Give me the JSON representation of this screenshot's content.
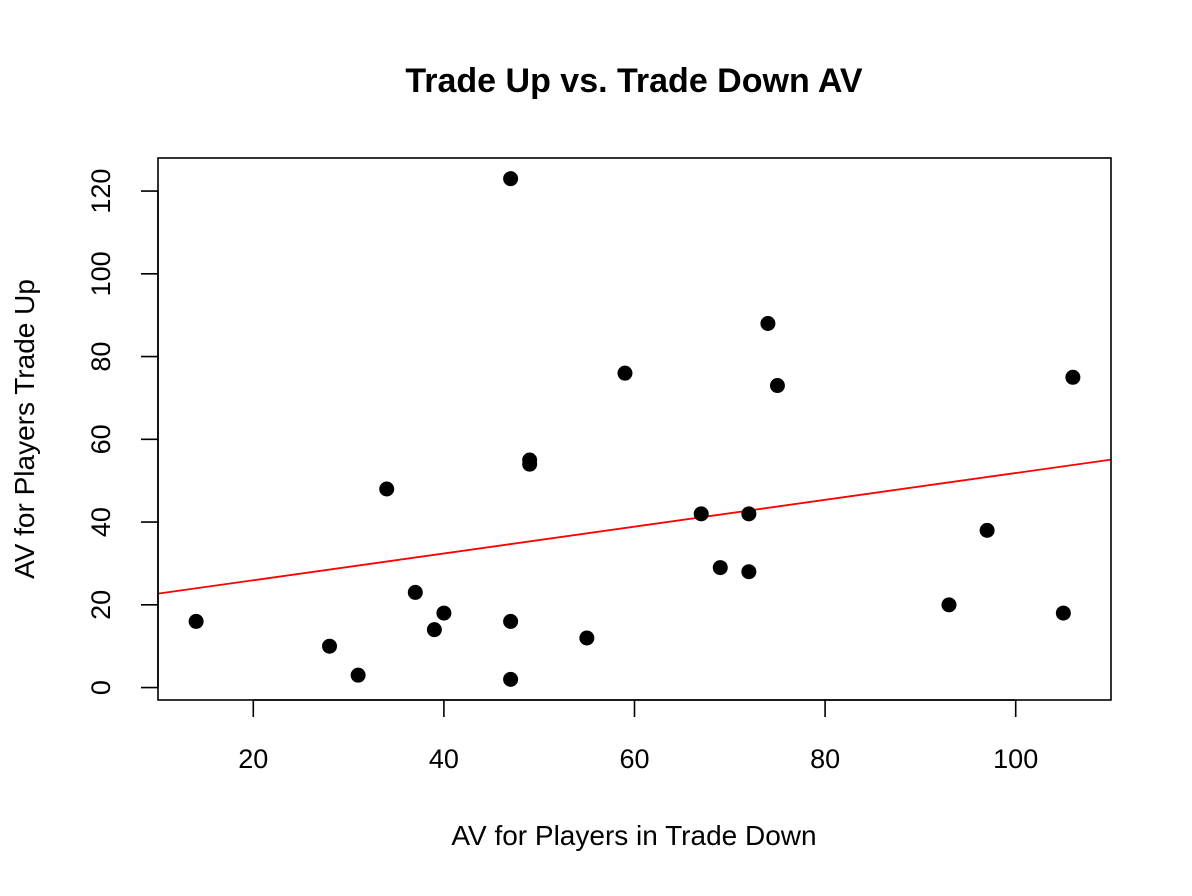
{
  "chart_data": {
    "type": "scatter",
    "title": "Trade Up vs. Trade Down AV",
    "xlabel": "AV for Players in Trade Down",
    "ylabel": "AV for Players Trade Up",
    "xlim": [
      10,
      110
    ],
    "ylim": [
      -3,
      128
    ],
    "xticks": [
      20,
      40,
      60,
      80,
      100
    ],
    "yticks": [
      0,
      20,
      40,
      60,
      80,
      100,
      120
    ],
    "grid": false,
    "series": [
      {
        "color": "#000000",
        "points": [
          {
            "x": 14,
            "y": 16
          },
          {
            "x": 28,
            "y": 10
          },
          {
            "x": 31,
            "y": 3
          },
          {
            "x": 34,
            "y": 48
          },
          {
            "x": 37,
            "y": 23
          },
          {
            "x": 39,
            "y": 14
          },
          {
            "x": 40,
            "y": 18
          },
          {
            "x": 47,
            "y": 123
          },
          {
            "x": 47,
            "y": 16
          },
          {
            "x": 47,
            "y": 2
          },
          {
            "x": 49,
            "y": 55
          },
          {
            "x": 49,
            "y": 54
          },
          {
            "x": 55,
            "y": 12
          },
          {
            "x": 59,
            "y": 76
          },
          {
            "x": 67,
            "y": 42
          },
          {
            "x": 69,
            "y": 29
          },
          {
            "x": 72,
            "y": 42
          },
          {
            "x": 72,
            "y": 28
          },
          {
            "x": 74,
            "y": 88
          },
          {
            "x": 75,
            "y": 73
          },
          {
            "x": 93,
            "y": 20
          },
          {
            "x": 97,
            "y": 38
          },
          {
            "x": 105,
            "y": 18
          },
          {
            "x": 106,
            "y": 75
          }
        ]
      }
    ],
    "fit_line": {
      "color": "#ff0000",
      "x": [
        10,
        110
      ],
      "y": [
        22.7,
        55.1
      ]
    }
  }
}
